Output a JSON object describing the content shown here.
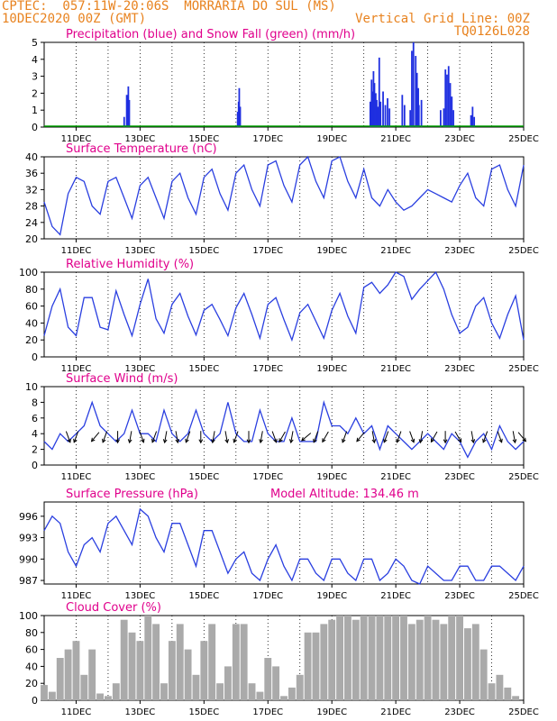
{
  "header": {
    "line1_left": "CPTEC:  057:11W-20:06S  MORRARIA DO SUL (MS)",
    "line2_left": "10DEC2020 00Z (GMT)",
    "line2_right": "Vertical Grid Line: 00Z",
    "line3_right": "TQ0126L028"
  },
  "colors": {
    "blue_line": "#2a3fe0",
    "precip_bar": "#1f2fe0",
    "snow": "#00a000",
    "cloud_bar": "#aaaaaa",
    "title": "#e0008c",
    "header": "#e8821e"
  },
  "x_axis": {
    "tick_labels": [
      "11DEC",
      "13DEC",
      "15DEC",
      "17DEC",
      "19DEC",
      "21DEC",
      "23DEC",
      "25DEC"
    ],
    "tick_days": [
      11,
      13,
      15,
      17,
      19,
      21,
      23,
      25
    ],
    "range_days": [
      10,
      25
    ]
  },
  "chart_data": [
    {
      "type": "bar",
      "title": "Precipitation (blue) and Snow Fall (green) (mm/h)",
      "ylim": [
        0,
        5
      ],
      "yticks": [
        0,
        1,
        2,
        3,
        4,
        5
      ],
      "series": [
        {
          "name": "Precipitation",
          "x": [
            12.5,
            12.58,
            12.63,
            12.66,
            16.05,
            16.08,
            16.1,
            16.13,
            20.2,
            20.24,
            20.27,
            20.3,
            20.33,
            20.37,
            20.4,
            20.44,
            20.48,
            20.52,
            20.6,
            20.67,
            20.74,
            20.8,
            21.2,
            21.27,
            21.45,
            21.5,
            21.55,
            21.62,
            21.66,
            21.7,
            21.72,
            21.8,
            22.4,
            22.5,
            22.55,
            22.6,
            22.65,
            22.7,
            22.75,
            22.8,
            23.35,
            23.4,
            23.45
          ],
          "values": [
            0.6,
            1.9,
            2.4,
            1.6,
            0.9,
            1.5,
            2.3,
            1.2,
            1.5,
            2.8,
            2.1,
            3.3,
            2.6,
            2.0,
            1.6,
            1.2,
            4.1,
            1.5,
            2.1,
            1.3,
            1.7,
            1.1,
            1.9,
            1.3,
            1.0,
            4.5,
            5.0,
            4.2,
            3.2,
            2.3,
            1.3,
            1.6,
            1.0,
            1.1,
            3.4,
            3.1,
            3.6,
            2.6,
            1.8,
            1.0,
            0.7,
            1.2,
            0.6
          ]
        },
        {
          "name": "Snow Fall",
          "x": [
            10,
            25
          ],
          "values": [
            0,
            0
          ]
        }
      ]
    },
    {
      "type": "line",
      "title": "Surface Temperature (nC)",
      "ylim": [
        20,
        40
      ],
      "yticks": [
        20,
        24,
        28,
        32,
        36,
        40
      ],
      "x": [
        10,
        10.25,
        10.5,
        10.75,
        11,
        11.25,
        11.5,
        11.75,
        12,
        12.25,
        12.5,
        12.75,
        13,
        13.25,
        13.5,
        13.75,
        14,
        14.25,
        14.5,
        14.75,
        15,
        15.25,
        15.5,
        15.75,
        16,
        16.25,
        16.5,
        16.75,
        17,
        17.25,
        17.5,
        17.75,
        18,
        18.25,
        18.5,
        18.75,
        19,
        19.25,
        19.5,
        19.75,
        20,
        20.25,
        20.5,
        20.75,
        21,
        21.25,
        21.5,
        21.75,
        22,
        22.25,
        22.5,
        22.75,
        23,
        23.25,
        23.5,
        23.75,
        24,
        24.25,
        24.5,
        24.75,
        25
      ],
      "values": [
        29,
        23,
        21,
        31,
        35,
        34,
        28,
        26,
        34,
        35,
        30,
        25,
        33,
        35,
        30,
        25,
        34,
        36,
        30,
        26,
        35,
        37,
        31,
        27,
        36,
        38,
        32,
        28,
        38,
        39,
        33,
        29,
        38,
        40,
        34,
        30,
        39,
        40,
        34,
        30,
        37,
        30,
        28,
        32,
        29,
        27,
        28,
        30,
        32,
        31,
        30,
        29,
        33,
        36,
        30,
        28,
        37,
        38,
        32,
        28,
        38
      ]
    },
    {
      "type": "line",
      "title": "Relative Humidity (%)",
      "ylim": [
        0,
        100
      ],
      "yticks": [
        0,
        20,
        40,
        60,
        80,
        100
      ],
      "x": [
        10,
        10.25,
        10.5,
        10.75,
        11,
        11.25,
        11.5,
        11.75,
        12,
        12.25,
        12.5,
        12.75,
        13,
        13.25,
        13.5,
        13.75,
        14,
        14.25,
        14.5,
        14.75,
        15,
        15.25,
        15.5,
        15.75,
        16,
        16.25,
        16.5,
        16.75,
        17,
        17.25,
        17.5,
        17.75,
        18,
        18.25,
        18.5,
        18.75,
        19,
        19.25,
        19.5,
        19.75,
        20,
        20.25,
        20.5,
        20.75,
        21,
        21.25,
        21.5,
        21.75,
        22,
        22.25,
        22.5,
        22.75,
        23,
        23.25,
        23.5,
        23.75,
        24,
        24.25,
        24.5,
        24.75,
        25
      ],
      "values": [
        25,
        60,
        80,
        35,
        25,
        70,
        70,
        35,
        32,
        78,
        50,
        25,
        62,
        92,
        45,
        28,
        62,
        75,
        48,
        26,
        55,
        62,
        44,
        25,
        58,
        75,
        50,
        22,
        62,
        70,
        44,
        20,
        52,
        62,
        42,
        22,
        55,
        75,
        48,
        28,
        82,
        88,
        75,
        85,
        100,
        95,
        68,
        80,
        90,
        100,
        80,
        50,
        28,
        35,
        60,
        70,
        40,
        22,
        50,
        72,
        20
      ]
    },
    {
      "type": "line",
      "title": "Surface Wind (m/s)",
      "ylim": [
        0,
        10
      ],
      "yticks": [
        0,
        2,
        4,
        6,
        8,
        10
      ],
      "x": [
        10,
        10.25,
        10.5,
        10.75,
        11,
        11.25,
        11.5,
        11.75,
        12,
        12.25,
        12.5,
        12.75,
        13,
        13.25,
        13.5,
        13.75,
        14,
        14.25,
        14.5,
        14.75,
        15,
        15.25,
        15.5,
        15.75,
        16,
        16.25,
        16.5,
        16.75,
        17,
        17.25,
        17.5,
        17.75,
        18,
        18.25,
        18.5,
        18.75,
        19,
        19.25,
        19.5,
        19.75,
        20,
        20.25,
        20.5,
        20.75,
        21,
        21.25,
        21.5,
        21.75,
        22,
        22.25,
        22.5,
        22.75,
        23,
        23.25,
        23.5,
        23.75,
        24,
        24.25,
        24.5,
        24.75,
        25
      ],
      "values": [
        3,
        2,
        4,
        3,
        4,
        5,
        8,
        5,
        4,
        3,
        4,
        7,
        4,
        4,
        3,
        7,
        4,
        3,
        4,
        7,
        4,
        3,
        4,
        8,
        4,
        3,
        3,
        7,
        4,
        3,
        3,
        6,
        3,
        3,
        3,
        8,
        5,
        5,
        4,
        6,
        4,
        5,
        2,
        5,
        4,
        3,
        2,
        3,
        4,
        3,
        2,
        4,
        3,
        1,
        3,
        4,
        2,
        5,
        3,
        2,
        3
      ],
      "arrow_days": [
        10.75,
        11,
        11.6,
        11.9,
        12.3,
        12.7,
        13.05,
        13.45,
        13.8,
        14.15,
        14.5,
        14.9,
        15.3,
        15.7,
        16,
        16.4,
        16.8,
        17.2,
        17.45,
        17.75,
        18.2,
        18.5,
        18.8,
        19.4,
        19.9,
        20.3,
        20.7,
        21.1,
        21.5,
        21.8,
        22.2,
        22.55,
        22.95,
        23.4,
        23.8,
        24.25,
        24.7,
        24.95
      ],
      "arrow_dir_deg": [
        160,
        200,
        220,
        200,
        180,
        190,
        160,
        200,
        190,
        170,
        200,
        180,
        190,
        170,
        200,
        180,
        190,
        160,
        210,
        190,
        230,
        200,
        210,
        200,
        220,
        170,
        200,
        200,
        160,
        190,
        210,
        180,
        150,
        170,
        200,
        160,
        170,
        140
      ]
    },
    {
      "type": "line",
      "title": "Surface Pressure (hPa)",
      "subtitle": "Model Altitude: 134.46 m",
      "ylim": [
        986.5,
        998
      ],
      "yticks": [
        987,
        990,
        993,
        996
      ],
      "x": [
        10,
        10.25,
        10.5,
        10.75,
        11,
        11.25,
        11.5,
        11.75,
        12,
        12.25,
        12.5,
        12.75,
        13,
        13.25,
        13.5,
        13.75,
        14,
        14.25,
        14.5,
        14.75,
        15,
        15.25,
        15.5,
        15.75,
        16,
        16.25,
        16.5,
        16.75,
        17,
        17.25,
        17.5,
        17.75,
        18,
        18.25,
        18.5,
        18.75,
        19,
        19.25,
        19.5,
        19.75,
        20,
        20.25,
        20.5,
        20.75,
        21,
        21.25,
        21.5,
        21.75,
        22,
        22.25,
        22.5,
        22.75,
        23,
        23.25,
        23.5,
        23.75,
        24,
        24.25,
        24.5,
        24.75,
        25
      ],
      "values": [
        994,
        996,
        995,
        991,
        989,
        992,
        993,
        991,
        995,
        996,
        994,
        992,
        997,
        996,
        993,
        991,
        995,
        995,
        992,
        989,
        994,
        994,
        991,
        988,
        990,
        991,
        988,
        987,
        990,
        992,
        989,
        987,
        990,
        990,
        988,
        987,
        990,
        990,
        988,
        987,
        990,
        990,
        987,
        988,
        990,
        989,
        987,
        986.5,
        989,
        988,
        987,
        987,
        989,
        989,
        987,
        987,
        989,
        989,
        988,
        987,
        989
      ]
    },
    {
      "type": "bar",
      "title": "Cloud Cover (%)",
      "ylim": [
        0,
        100
      ],
      "yticks": [
        0,
        20,
        40,
        60,
        80,
        100
      ],
      "x": [
        10,
        10.25,
        10.5,
        10.75,
        11,
        11.25,
        11.5,
        11.75,
        12,
        12.25,
        12.5,
        12.75,
        13,
        13.25,
        13.5,
        13.75,
        14,
        14.25,
        14.5,
        14.75,
        15,
        15.25,
        15.5,
        15.75,
        16,
        16.25,
        16.5,
        16.75,
        17,
        17.25,
        17.5,
        17.75,
        18,
        18.25,
        18.5,
        18.75,
        19,
        19.25,
        19.5,
        19.75,
        20,
        20.25,
        20.5,
        20.75,
        21,
        21.25,
        21.5,
        21.75,
        22,
        22.25,
        22.5,
        22.75,
        23,
        23.25,
        23.5,
        23.75,
        24,
        24.25,
        24.5,
        24.75,
        25
      ],
      "values": [
        18,
        10,
        50,
        60,
        70,
        30,
        60,
        8,
        5,
        20,
        95,
        80,
        70,
        100,
        90,
        20,
        70,
        90,
        60,
        30,
        70,
        90,
        20,
        40,
        90,
        90,
        20,
        10,
        50,
        40,
        5,
        15,
        30,
        80,
        80,
        90,
        95,
        100,
        100,
        95,
        100,
        100,
        100,
        100,
        100,
        100,
        90,
        95,
        100,
        95,
        90,
        100,
        100,
        85,
        90,
        60,
        20,
        30,
        15,
        5,
        0
      ]
    }
  ]
}
